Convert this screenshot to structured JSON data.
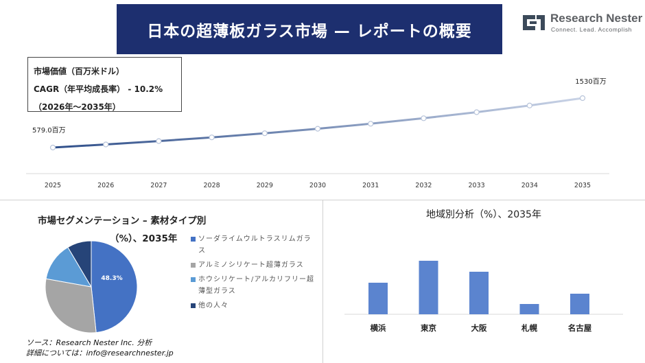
{
  "header": {
    "title": "日本の超薄板ガラス市場 — レポートの概要",
    "logo_name": "Research Nester",
    "logo_tagline": "Connect. Lead. Accomplish"
  },
  "info_box": {
    "line1": "市場価値（百万米ドル）",
    "line2": "CAGR（年平均成長率）  - 10.2%",
    "line3": "（2026年～2035年）"
  },
  "colors": {
    "title_bg": "#1d2f6f",
    "line_start": "#2f4f8a",
    "line_end": "#c9d3e6",
    "bar": "#5b84cf",
    "pie": [
      "#4472c4",
      "#a5a5a5",
      "#5b9bd5",
      "#264478"
    ]
  },
  "chart_data": [
    {
      "type": "line",
      "x": [
        "2025",
        "2026",
        "2027",
        "2028",
        "2029",
        "2030",
        "2031",
        "2032",
        "2033",
        "2034",
        "2035"
      ],
      "series": [
        {
          "values": [
            579.0,
            638.1,
            703.2,
            774.9,
            853.9,
            941.0,
            1037.0,
            1142.8,
            1259.3,
            1387.8,
            1530
          ]
        }
      ],
      "annotations": {
        "start": "579.0百万",
        "end": "1530百万"
      }
    },
    {
      "type": "pie",
      "title": "市場セグメンテーション – 素材タイプ別",
      "subtitle": "（%）、2035年",
      "labels": [
        "ソーダライムウルトラスリムガラス",
        "アルミノシリケート超薄ガラス",
        "ホウシリケート/アルカリフリー超薄型ガラス",
        "他の人々"
      ],
      "values": [
        48.3,
        29.5,
        13.7,
        8.5
      ],
      "data_label": "48.3%"
    },
    {
      "type": "bar",
      "title": "地域別分析（%）、2035年",
      "categories": [
        "横浜",
        "東京",
        "大阪",
        "札幌",
        "名古屋"
      ],
      "values": [
        46,
        78,
        62,
        15,
        30
      ],
      "ylim": [
        0,
        100
      ]
    }
  ],
  "source": {
    "line1": "ソース：Research Nester Inc. 分析",
    "line2": "詳細については：info@researchnester.jp"
  }
}
